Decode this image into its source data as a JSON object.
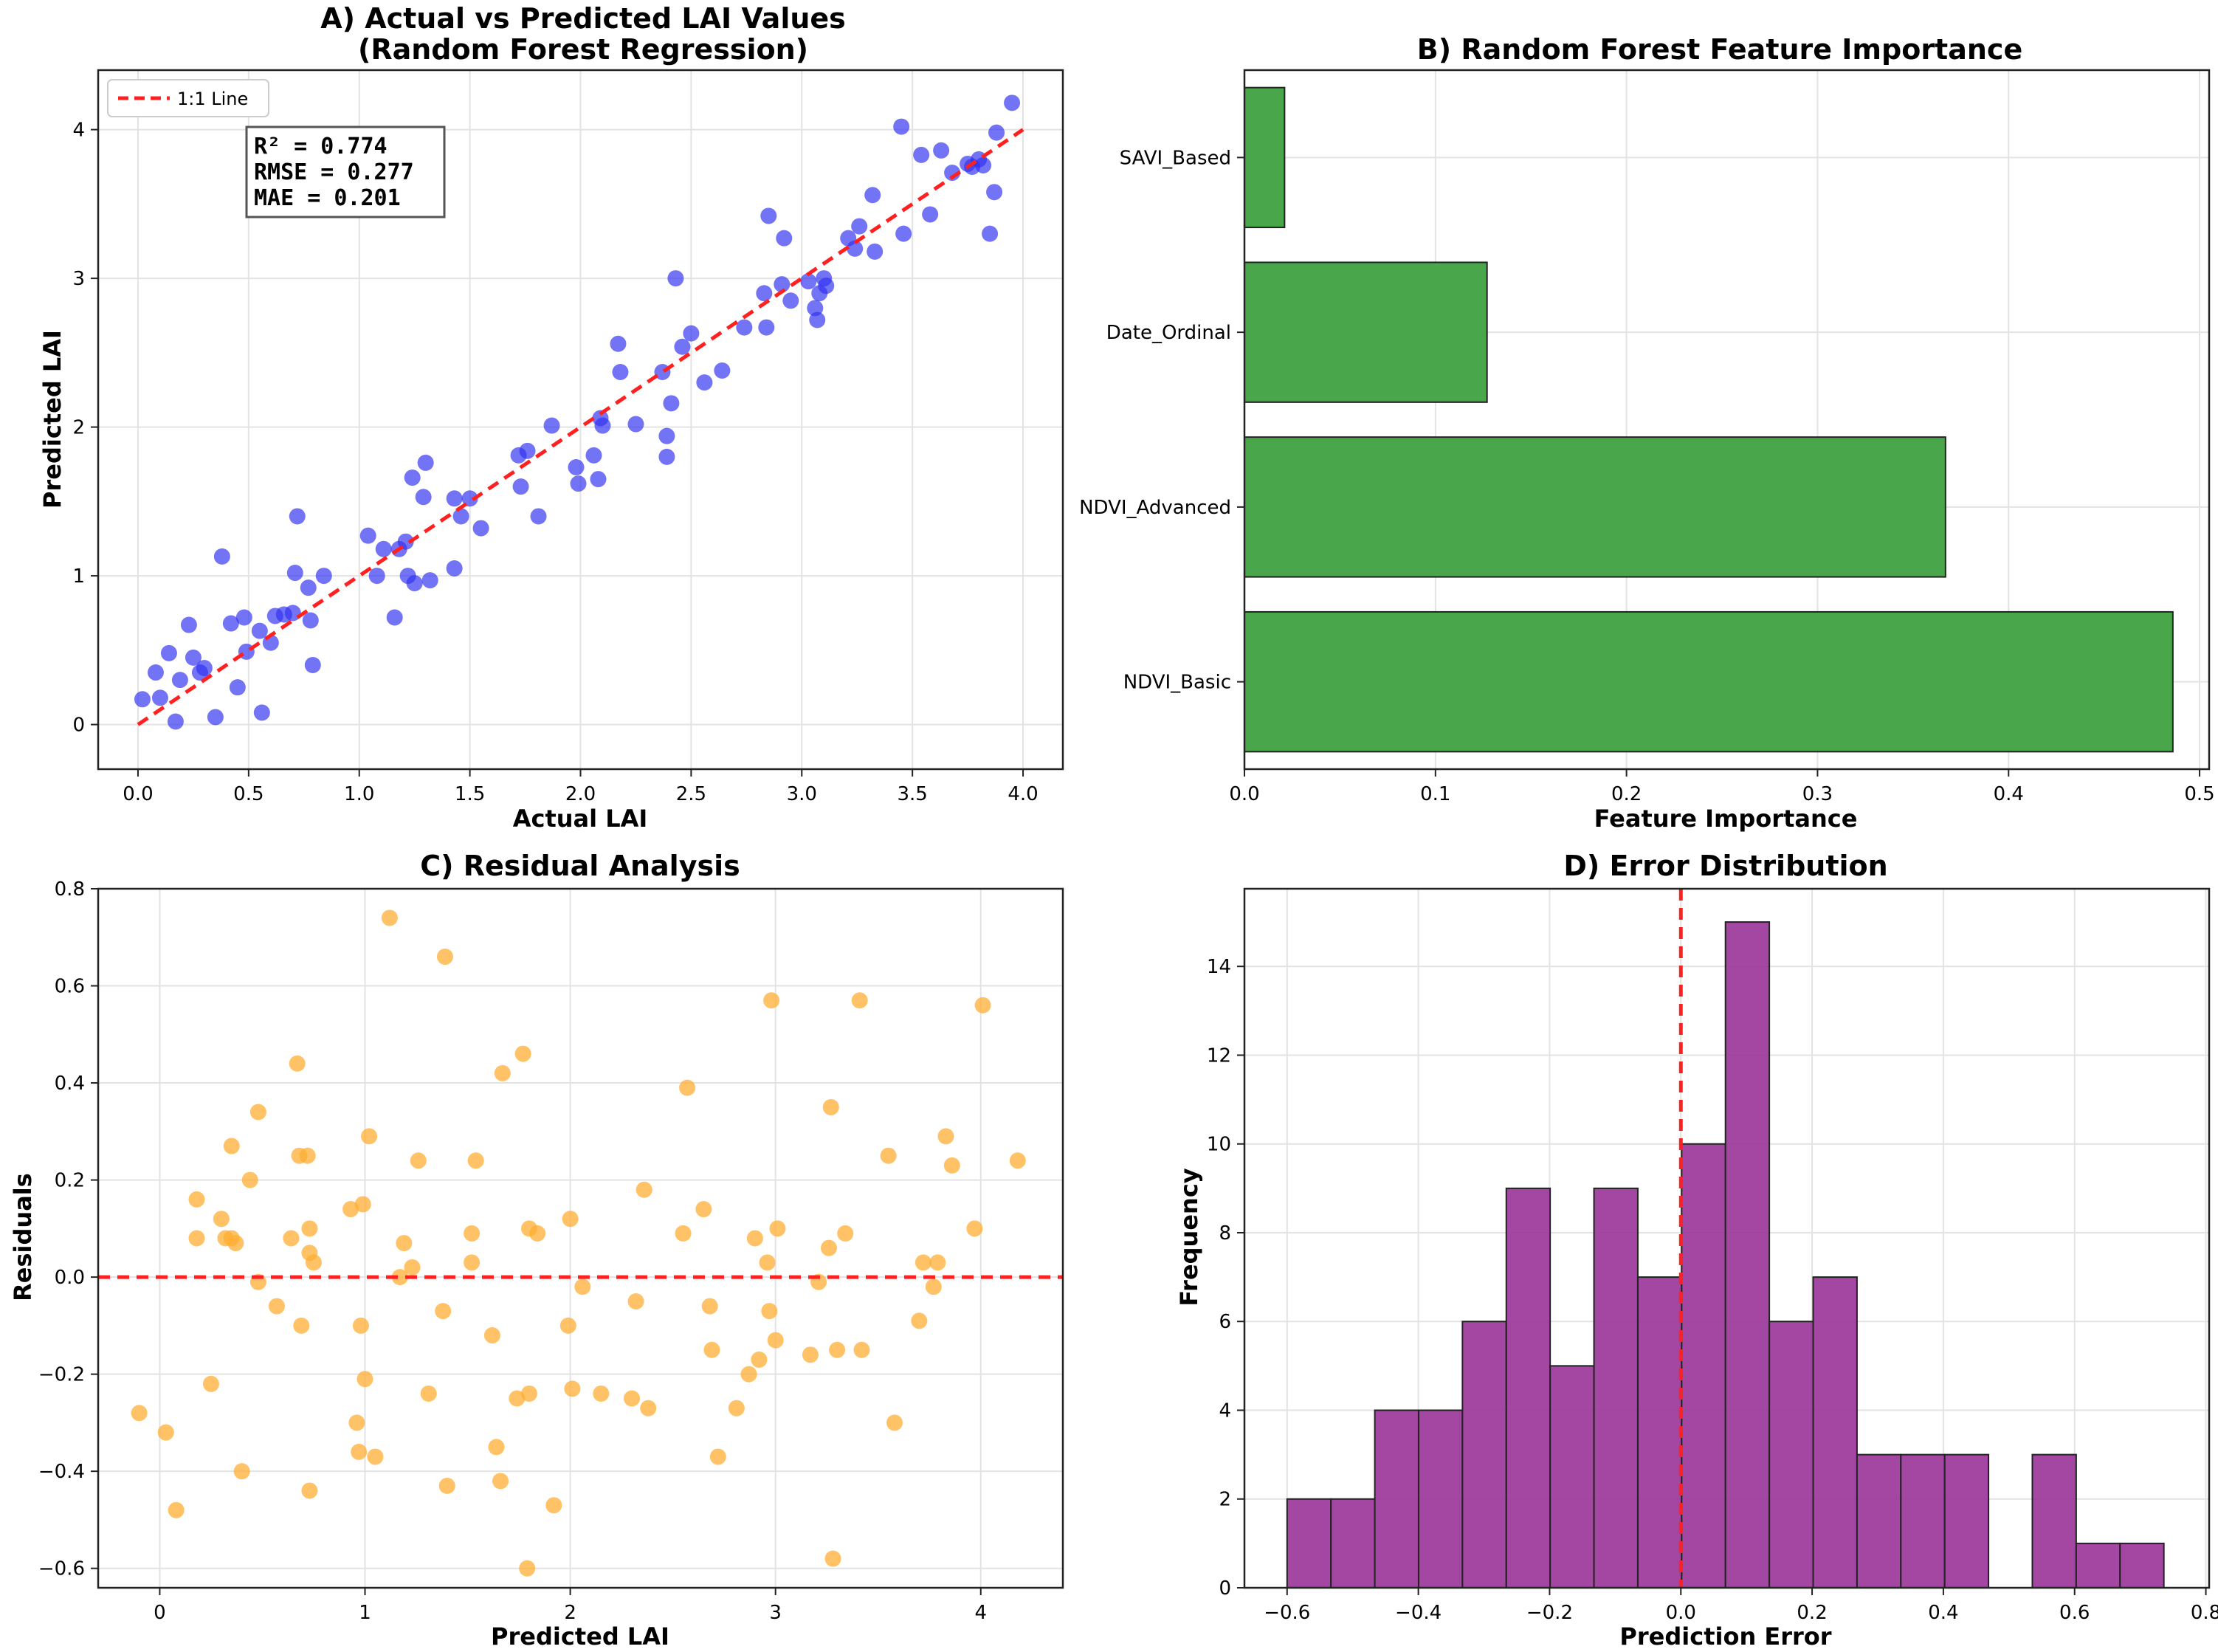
{
  "chart_data": [
    {
      "id": "A",
      "type": "scatter",
      "title": "A) Actual vs Predicted LAI Values",
      "subtitle": "(Random Forest Regression)",
      "xlabel": "Actual LAI",
      "ylabel": "Predicted LAI",
      "xlim": [
        -0.18,
        4.18
      ],
      "ylim": [
        -0.3,
        4.4
      ],
      "xticks": [
        0.0,
        0.5,
        1.0,
        1.5,
        2.0,
        2.5,
        3.0,
        3.5,
        4.0
      ],
      "xtick_labels": [
        "0.0",
        "0.5",
        "1.0",
        "1.5",
        "2.0",
        "2.5",
        "3.0",
        "3.5",
        "4.0"
      ],
      "yticks": [
        0,
        1,
        2,
        3,
        4
      ],
      "ytick_labels": [
        "0",
        "1",
        "2",
        "3",
        "4"
      ],
      "grid": true,
      "point_color": "#3030f0",
      "line_color": "#ff2020",
      "legend": {
        "label": "1:1 Line",
        "position": "top-left"
      },
      "stats": [
        "R² = 0.774",
        "RMSE = 0.277",
        "MAE = 0.201"
      ],
      "reference_line": {
        "x": [
          0,
          4
        ],
        "y": [
          0,
          4
        ]
      },
      "points": [
        [
          0.02,
          0.17
        ],
        [
          0.08,
          0.35
        ],
        [
          0.1,
          0.18
        ],
        [
          0.14,
          0.48
        ],
        [
          0.17,
          0.02
        ],
        [
          0.19,
          0.3
        ],
        [
          0.23,
          0.67
        ],
        [
          0.25,
          0.45
        ],
        [
          0.28,
          0.35
        ],
        [
          0.3,
          0.38
        ],
        [
          0.35,
          0.05
        ],
        [
          0.38,
          1.13
        ],
        [
          0.42,
          0.68
        ],
        [
          0.45,
          0.25
        ],
        [
          0.48,
          0.72
        ],
        [
          0.49,
          0.49
        ],
        [
          0.55,
          0.63
        ],
        [
          0.56,
          0.08
        ],
        [
          0.6,
          0.55
        ],
        [
          0.62,
          0.73
        ],
        [
          0.66,
          0.74
        ],
        [
          0.7,
          0.75
        ],
        [
          0.71,
          1.02
        ],
        [
          0.72,
          1.4
        ],
        [
          0.77,
          0.92
        ],
        [
          0.78,
          0.7
        ],
        [
          0.79,
          0.4
        ],
        [
          0.84,
          1.0
        ],
        [
          1.04,
          1.27
        ],
        [
          1.08,
          1.0
        ],
        [
          1.11,
          1.18
        ],
        [
          1.16,
          0.72
        ],
        [
          1.18,
          1.18
        ],
        [
          1.21,
          1.23
        ],
        [
          1.22,
          1.0
        ],
        [
          1.24,
          1.66
        ],
        [
          1.25,
          0.95
        ],
        [
          1.29,
          1.53
        ],
        [
          1.3,
          1.76
        ],
        [
          1.32,
          0.97
        ],
        [
          1.43,
          1.05
        ],
        [
          1.43,
          1.52
        ],
        [
          1.46,
          1.4
        ],
        [
          1.5,
          1.52
        ],
        [
          1.55,
          1.32
        ],
        [
          1.72,
          1.81
        ],
        [
          1.73,
          1.6
        ],
        [
          1.76,
          1.84
        ],
        [
          1.81,
          1.4
        ],
        [
          1.87,
          2.01
        ],
        [
          1.98,
          1.73
        ],
        [
          1.99,
          1.62
        ],
        [
          2.06,
          1.81
        ],
        [
          2.08,
          1.65
        ],
        [
          2.09,
          2.06
        ],
        [
          2.1,
          2.01
        ],
        [
          2.17,
          2.56
        ],
        [
          2.18,
          2.37
        ],
        [
          2.25,
          2.02
        ],
        [
          2.37,
          2.37
        ],
        [
          2.39,
          1.94
        ],
        [
          2.39,
          1.8
        ],
        [
          2.41,
          2.16
        ],
        [
          2.43,
          3.0
        ],
        [
          2.46,
          2.54
        ],
        [
          2.5,
          2.63
        ],
        [
          2.56,
          2.3
        ],
        [
          2.64,
          2.38
        ],
        [
          2.74,
          2.67
        ],
        [
          2.83,
          2.9
        ],
        [
          2.84,
          2.67
        ],
        [
          2.85,
          3.42
        ],
        [
          2.91,
          2.96
        ],
        [
          2.92,
          3.27
        ],
        [
          2.95,
          2.85
        ],
        [
          3.03,
          2.98
        ],
        [
          3.06,
          2.8
        ],
        [
          3.07,
          2.72
        ],
        [
          3.08,
          2.9
        ],
        [
          3.1,
          3.0
        ],
        [
          3.11,
          2.95
        ],
        [
          3.21,
          3.27
        ],
        [
          3.24,
          3.2
        ],
        [
          3.26,
          3.35
        ],
        [
          3.32,
          3.56
        ],
        [
          3.33,
          3.18
        ],
        [
          3.45,
          4.02
        ],
        [
          3.46,
          3.3
        ],
        [
          3.54,
          3.83
        ],
        [
          3.58,
          3.43
        ],
        [
          3.63,
          3.86
        ],
        [
          3.68,
          3.71
        ],
        [
          3.75,
          3.77
        ],
        [
          3.77,
          3.75
        ],
        [
          3.8,
          3.8
        ],
        [
          3.82,
          3.76
        ],
        [
          3.85,
          3.3
        ],
        [
          3.87,
          3.58
        ],
        [
          3.88,
          3.98
        ],
        [
          3.95,
          4.18
        ]
      ]
    },
    {
      "id": "B",
      "type": "bar",
      "orientation": "horizontal",
      "title": "B) Random Forest Feature Importance",
      "xlabel": "Feature Importance",
      "ylabel": "",
      "xlim": [
        0,
        0.505
      ],
      "xticks": [
        0.0,
        0.1,
        0.2,
        0.3,
        0.4,
        0.5
      ],
      "xtick_labels": [
        "0.0",
        "0.1",
        "0.2",
        "0.3",
        "0.4",
        "0.5"
      ],
      "grid": true,
      "bar_color": "#4aa64a",
      "categories": [
        "NDVI_Basic",
        "NDVI_Advanced",
        "Date_Ordinal",
        "SAVI_Based"
      ],
      "values": [
        0.486,
        0.367,
        0.127,
        0.021
      ]
    },
    {
      "id": "C",
      "type": "scatter",
      "title": "C) Residual Analysis",
      "xlabel": "Predicted LAI",
      "ylabel": "Residuals",
      "xlim": [
        -0.3,
        4.4
      ],
      "ylim": [
        -0.64,
        0.8
      ],
      "xticks": [
        0,
        1,
        2,
        3,
        4
      ],
      "xtick_labels": [
        "0",
        "1",
        "2",
        "3",
        "4"
      ],
      "yticks": [
        -0.6,
        -0.4,
        -0.2,
        0.0,
        0.2,
        0.4,
        0.6,
        0.8
      ],
      "ytick_labels": [
        "−0.6",
        "−0.4",
        "−0.2",
        "0.0",
        "0.2",
        "0.4",
        "0.6",
        "0.8"
      ],
      "grid": true,
      "point_color": "#ffad33",
      "line_color": "#ff2020",
      "reference_line": {
        "y": 0
      },
      "points": [
        [
          -0.1,
          -0.28
        ],
        [
          0.03,
          -0.32
        ],
        [
          0.08,
          -0.48
        ],
        [
          0.18,
          0.16
        ],
        [
          0.18,
          0.08
        ],
        [
          0.25,
          -0.22
        ],
        [
          0.3,
          0.12
        ],
        [
          0.32,
          0.08
        ],
        [
          0.35,
          0.08
        ],
        [
          0.35,
          0.27
        ],
        [
          0.37,
          0.07
        ],
        [
          0.4,
          -0.4
        ],
        [
          0.44,
          0.2
        ],
        [
          0.48,
          0.34
        ],
        [
          0.48,
          -0.01
        ],
        [
          0.57,
          -0.06
        ],
        [
          0.64,
          0.08
        ],
        [
          0.67,
          0.44
        ],
        [
          0.68,
          0.25
        ],
        [
          0.69,
          -0.1
        ],
        [
          0.72,
          0.25
        ],
        [
          0.73,
          0.1
        ],
        [
          0.73,
          0.05
        ],
        [
          0.73,
          -0.44
        ],
        [
          0.75,
          0.03
        ],
        [
          0.93,
          0.14
        ],
        [
          0.96,
          -0.3
        ],
        [
          0.97,
          -0.36
        ],
        [
          0.98,
          -0.1
        ],
        [
          0.99,
          0.15
        ],
        [
          1.0,
          -0.21
        ],
        [
          1.02,
          0.29
        ],
        [
          1.05,
          -0.37
        ],
        [
          1.12,
          0.74
        ],
        [
          1.17,
          0.0
        ],
        [
          1.19,
          0.07
        ],
        [
          1.23,
          0.02
        ],
        [
          1.26,
          0.24
        ],
        [
          1.31,
          -0.24
        ],
        [
          1.38,
          -0.07
        ],
        [
          1.39,
          0.66
        ],
        [
          1.4,
          -0.43
        ],
        [
          1.52,
          0.09
        ],
        [
          1.52,
          0.03
        ],
        [
          1.54,
          0.24
        ],
        [
          1.62,
          -0.12
        ],
        [
          1.64,
          -0.35
        ],
        [
          1.66,
          -0.42
        ],
        [
          1.67,
          0.42
        ],
        [
          1.74,
          -0.25
        ],
        [
          1.77,
          0.46
        ],
        [
          1.79,
          -0.6
        ],
        [
          1.8,
          0.1
        ],
        [
          1.8,
          -0.24
        ],
        [
          1.84,
          0.09
        ],
        [
          1.92,
          -0.47
        ],
        [
          1.99,
          -0.1
        ],
        [
          2.0,
          0.12
        ],
        [
          2.01,
          -0.23
        ],
        [
          2.06,
          -0.02
        ],
        [
          2.15,
          -0.24
        ],
        [
          2.3,
          -0.25
        ],
        [
          2.32,
          -0.05
        ],
        [
          2.36,
          0.18
        ],
        [
          2.38,
          -0.27
        ],
        [
          2.55,
          0.09
        ],
        [
          2.57,
          0.39
        ],
        [
          2.65,
          0.14
        ],
        [
          2.68,
          -0.06
        ],
        [
          2.69,
          -0.15
        ],
        [
          2.72,
          -0.37
        ],
        [
          2.81,
          -0.27
        ],
        [
          2.87,
          -0.2
        ],
        [
          2.9,
          0.08
        ],
        [
          2.92,
          -0.17
        ],
        [
          2.96,
          0.03
        ],
        [
          2.97,
          -0.07
        ],
        [
          2.98,
          0.57
        ],
        [
          3.0,
          -0.13
        ],
        [
          3.01,
          0.1
        ],
        [
          3.17,
          -0.16
        ],
        [
          3.21,
          -0.01
        ],
        [
          3.26,
          0.06
        ],
        [
          3.27,
          0.35
        ],
        [
          3.28,
          -0.58
        ],
        [
          3.3,
          -0.15
        ],
        [
          3.34,
          0.09
        ],
        [
          3.41,
          0.57
        ],
        [
          3.42,
          -0.15
        ],
        [
          3.55,
          0.25
        ],
        [
          3.58,
          -0.3
        ],
        [
          3.7,
          -0.09
        ],
        [
          3.72,
          0.03
        ],
        [
          3.77,
          -0.02
        ],
        [
          3.79,
          0.03
        ],
        [
          3.83,
          0.29
        ],
        [
          3.86,
          0.23
        ],
        [
          3.97,
          0.1
        ],
        [
          4.01,
          0.56
        ],
        [
          4.18,
          0.24
        ]
      ]
    },
    {
      "id": "D",
      "type": "histogram",
      "title": "D) Error Distribution",
      "xlabel": "Prediction Error",
      "ylabel": "Frequency",
      "xlim": [
        -0.665,
        0.805
      ],
      "ylim": [
        0,
        15.75
      ],
      "xticks": [
        -0.6,
        -0.4,
        -0.2,
        0.0,
        0.2,
        0.4,
        0.6,
        0.8
      ],
      "xtick_labels": [
        "−0.6",
        "−0.4",
        "−0.2",
        "0.0",
        "0.2",
        "0.4",
        "0.6",
        "0.8"
      ],
      "yticks": [
        0,
        2,
        4,
        6,
        8,
        10,
        12,
        14
      ],
      "ytick_labels": [
        "0",
        "2",
        "4",
        "6",
        "8",
        "10",
        "12",
        "14"
      ],
      "grid": true,
      "bar_color": "#993399",
      "line_color": "#ff2020",
      "reference_line": {
        "x": 0
      },
      "bin_start": -0.6,
      "bin_width": 0.0668,
      "counts": [
        2,
        2,
        4,
        4,
        6,
        9,
        5,
        9,
        7,
        10,
        15,
        6,
        7,
        3,
        3,
        3,
        0,
        3,
        1,
        1
      ]
    }
  ]
}
